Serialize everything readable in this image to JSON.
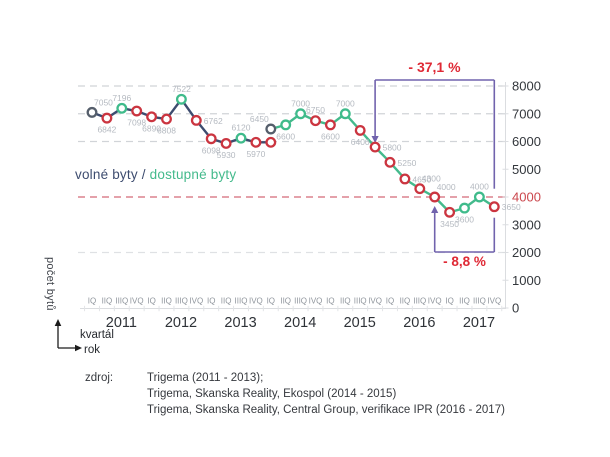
{
  "legend": {
    "series1": "volné byty",
    "separator": " / ",
    "series2": "dostupné byty"
  },
  "y_axis": {
    "title": "počet bytů",
    "ticks": [
      "8000",
      "7000",
      "6000",
      "5000",
      "4000",
      "3000",
      "2000",
      "1000",
      "0"
    ],
    "highlighted_tick": "4000"
  },
  "x_axis": {
    "quarter_axis_label": "kvartál",
    "year_axis_label": "rok",
    "quarters": [
      "IQ",
      "IIQ",
      "IIIQ",
      "IVQ"
    ],
    "years": [
      "2011",
      "2012",
      "2013",
      "2014",
      "2015",
      "2016",
      "2017"
    ]
  },
  "annotations": {
    "total_drop": {
      "text": "- 37,1 %",
      "arrow_index": 19,
      "end_index": 27,
      "side": "top"
    },
    "recent_drop": {
      "text": "- 8,8 %",
      "arrow_index": 23,
      "end_index": 27,
      "side": "bottom"
    }
  },
  "source": {
    "label": "zdroj:",
    "lines": [
      "Trigema (2011 - 2013);",
      "Trigema, Skanska Reality, Ekospol (2014 - 2015)",
      "Trigema, Skanska Reality, Central Group, verifikace IPR (2016 - 2017)"
    ]
  },
  "colors": {
    "navy": "#3d4c6f",
    "green": "#44ba8c",
    "red_marker": "#cb3540",
    "gray_marker": "#555e6b",
    "accent_red": "#df2935",
    "purple": "#7163ad",
    "grid_gray": "#d1d4d8",
    "grid_light": "#dfe1e4",
    "grid_red": "#dc828d",
    "axis_line": "#dbdde0",
    "value_label": "#b5bac1",
    "quarter_label": "#8f959c",
    "year_label": "#2e3237",
    "tick_label": "#33373c",
    "tick_label_red": "#cb474d"
  },
  "chart_data": {
    "type": "line",
    "ylim": [
      0,
      8000
    ],
    "quarters_total": 28,
    "gridlines": [
      {
        "value": 8000,
        "style": "gray"
      },
      {
        "value": 7000,
        "style": "gray"
      },
      {
        "value": 6000,
        "style": "gray"
      },
      {
        "value": 4000,
        "style": "red"
      },
      {
        "value": 2000,
        "style": "light"
      }
    ],
    "series": [
      {
        "name": "volné byty",
        "color_key": "navy",
        "start_index": 0,
        "values": [
          7050,
          6842,
          7196,
          7098,
          6890,
          6808,
          7522,
          6762,
          6098,
          5930,
          6120,
          5970,
          5970
        ],
        "point_labels": [
          "7050",
          "6842",
          "7196",
          "7098",
          "6890",
          "6808",
          "7522",
          "6762",
          "6098",
          "5930",
          "6120",
          "5970",
          ""
        ],
        "markers": [
          "gray",
          "red",
          "green",
          "red",
          "red",
          "red",
          "green",
          "red",
          "red",
          "red",
          "green",
          "red",
          "red"
        ],
        "label_pos": [
          "above-right",
          "below",
          "above",
          "below",
          "below",
          "below",
          "above",
          "right",
          "below",
          "below",
          "above",
          "below",
          ""
        ]
      },
      {
        "name": "dostupné byty",
        "color_key": "green",
        "start_index": 12,
        "values": [
          6450,
          6600,
          7000,
          6750,
          6600,
          7000,
          6400,
          5800,
          5250,
          4650,
          4300,
          4000,
          3450,
          3600,
          4000,
          3650
        ],
        "point_labels": [
          "6450",
          "6600",
          "7000",
          "6750",
          "6600",
          "7000",
          "6400",
          "5800",
          "5250",
          "4650",
          "4300",
          "4000",
          "3450",
          "3600",
          "4000",
          "3650"
        ],
        "markers": [
          "gray",
          "green",
          "green",
          "red",
          "red",
          "green",
          "red",
          "red",
          "red",
          "red",
          "red",
          "red",
          "red",
          "green",
          "green",
          "red"
        ],
        "label_pos": [
          "above-left",
          "below",
          "above",
          "above",
          "below",
          "above",
          "below",
          "right",
          "right",
          "right",
          "above-right",
          "above-right",
          "below",
          "below",
          "above",
          "right"
        ]
      }
    ]
  }
}
